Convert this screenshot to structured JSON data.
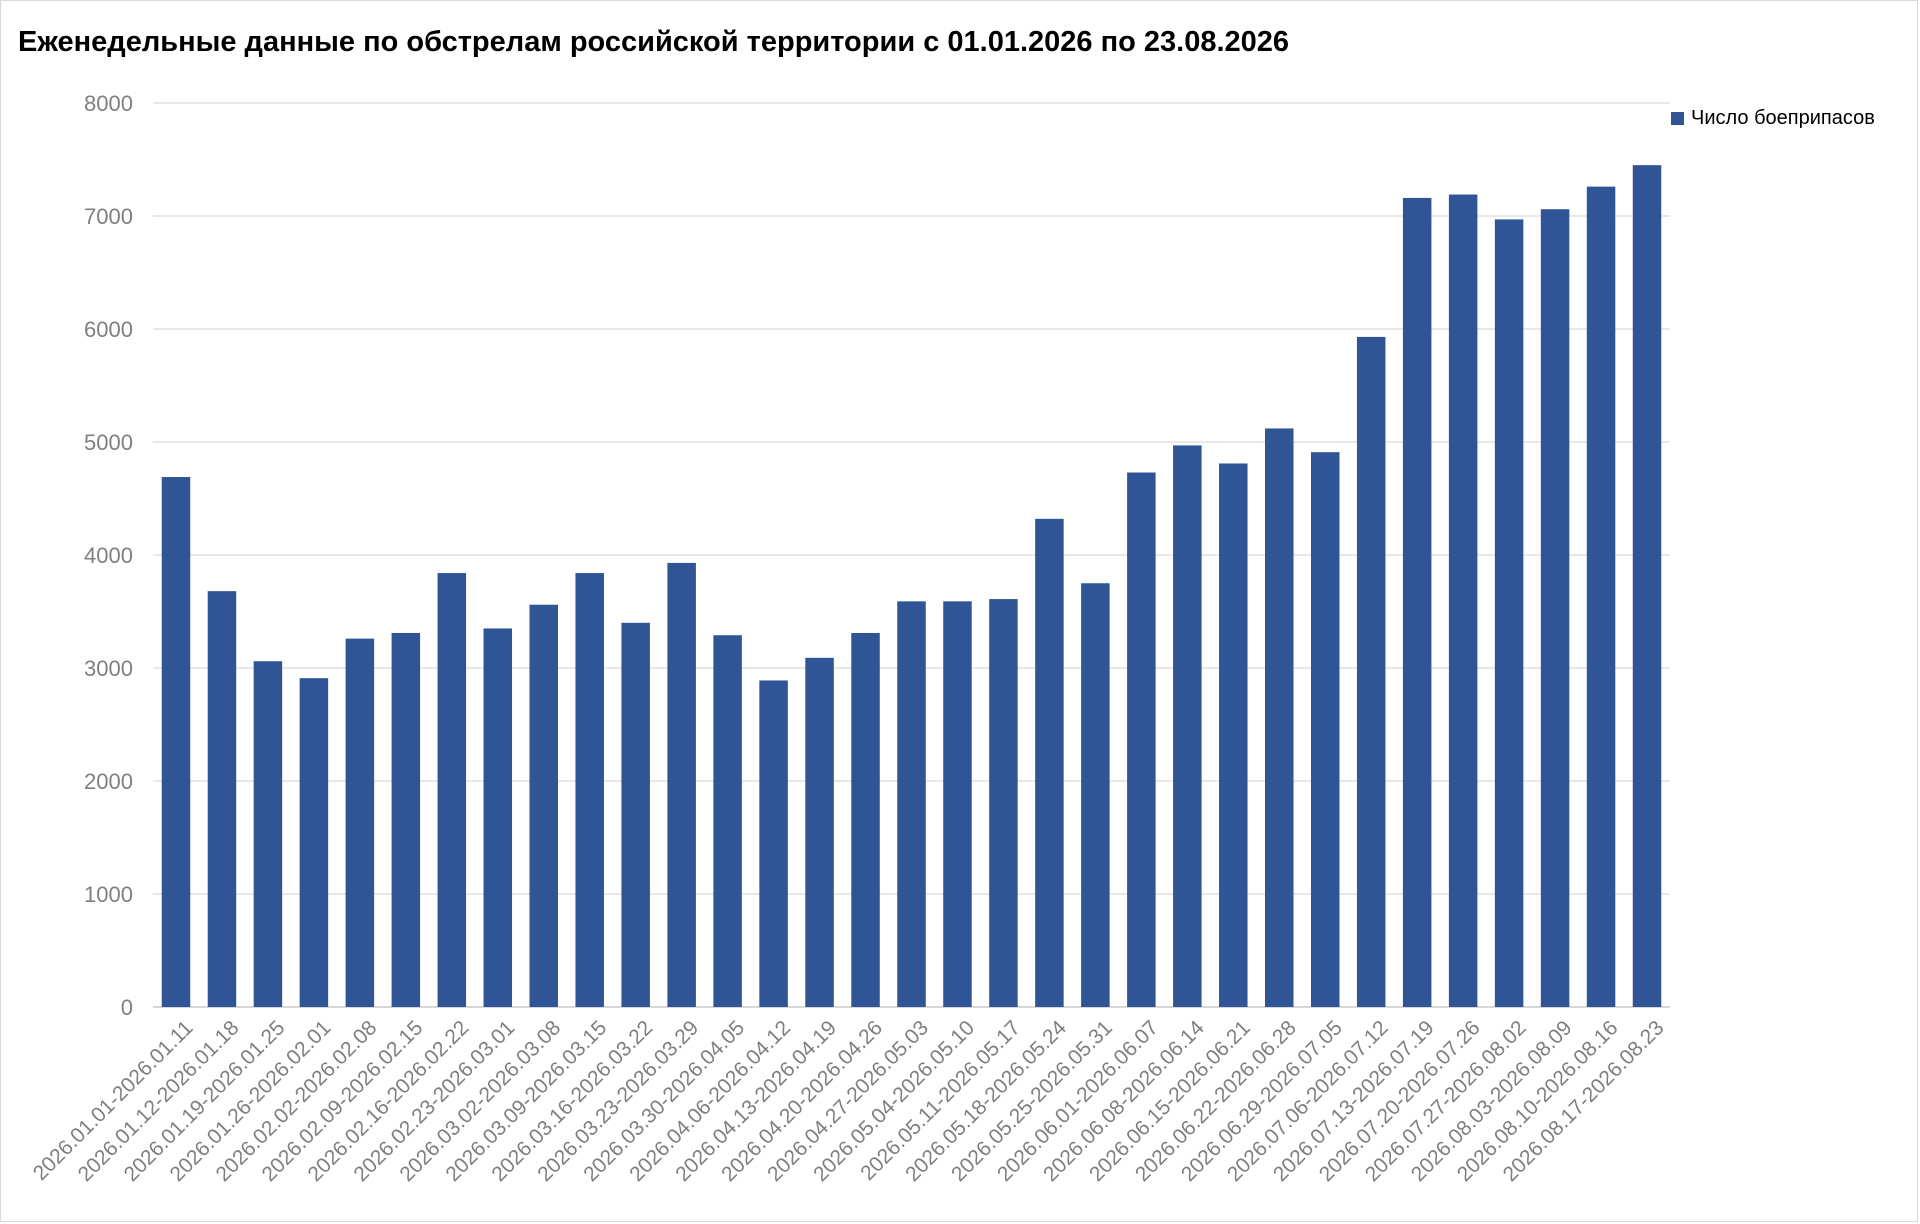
{
  "chart_data": {
    "type": "bar",
    "title": "Еженедельные данные по обстрелам российской территории с 01.01.2026 по 23.08.2026",
    "xlabel": "",
    "ylabel": "",
    "ylim": [
      0,
      8000
    ],
    "yticks": [
      0,
      1000,
      2000,
      3000,
      4000,
      5000,
      6000,
      7000,
      8000
    ],
    "grid": true,
    "legend_position": "top-right",
    "categories": [
      "2026.01.01-2026.01.11",
      "2026.01.12-2026.01.18",
      "2026.01.19-2026.01.25",
      "2026.01.26-2026.02.01",
      "2026.02.02-2026.02.08",
      "2026.02.09-2026.02.15",
      "2026.02.16-2026.02.22",
      "2026.02.23-2026.03.01",
      "2026.03.02-2026.03.08",
      "2026.03.09-2026.03.15",
      "2026.03.16-2026.03.22",
      "2026.03.23-2026.03.29",
      "2026.03.30-2026.04.05",
      "2026.04.06-2026.04.12",
      "2026.04.13-2026.04.19",
      "2026.04.20-2026.04.26",
      "2026.04.27-2026.05.03",
      "2026.05.04-2026.05.10",
      "2026.05.11-2026.05.17",
      "2026.05.18-2026.05.24",
      "2026.05.25-2026.05.31",
      "2026.06.01-2026.06.07",
      "2026.06.08-2026.06.14",
      "2026.06.15-2026.06.21",
      "2026.06.22-2026.06.28",
      "2026.06.29-2026.07.05",
      "2026.07.06-2026.07.12",
      "2026.07.13-2026.07.19",
      "2026.07.20-2026.07.26",
      "2026.07.27-2026.08.02",
      "2026.08.03-2026.08.09",
      "2026.08.10-2026.08.16",
      "2026.08.17-2026.08.23"
    ],
    "series": [
      {
        "name": "Число боеприпасов",
        "color": "#2f5597",
        "values": [
          4690,
          3680,
          3060,
          2910,
          3260,
          3310,
          3840,
          3350,
          3560,
          3840,
          3400,
          3930,
          3290,
          2890,
          3090,
          3310,
          3590,
          3590,
          3610,
          4320,
          3750,
          4730,
          4970,
          4810,
          5120,
          4910,
          5930,
          7160,
          7190,
          6970,
          7060,
          7260,
          7450
        ]
      }
    ]
  },
  "colors": {
    "bar": "#2f5597",
    "grid": "#d9d9d9",
    "axis": "#bfbfbf",
    "tick_text": "#7f7f7f"
  }
}
